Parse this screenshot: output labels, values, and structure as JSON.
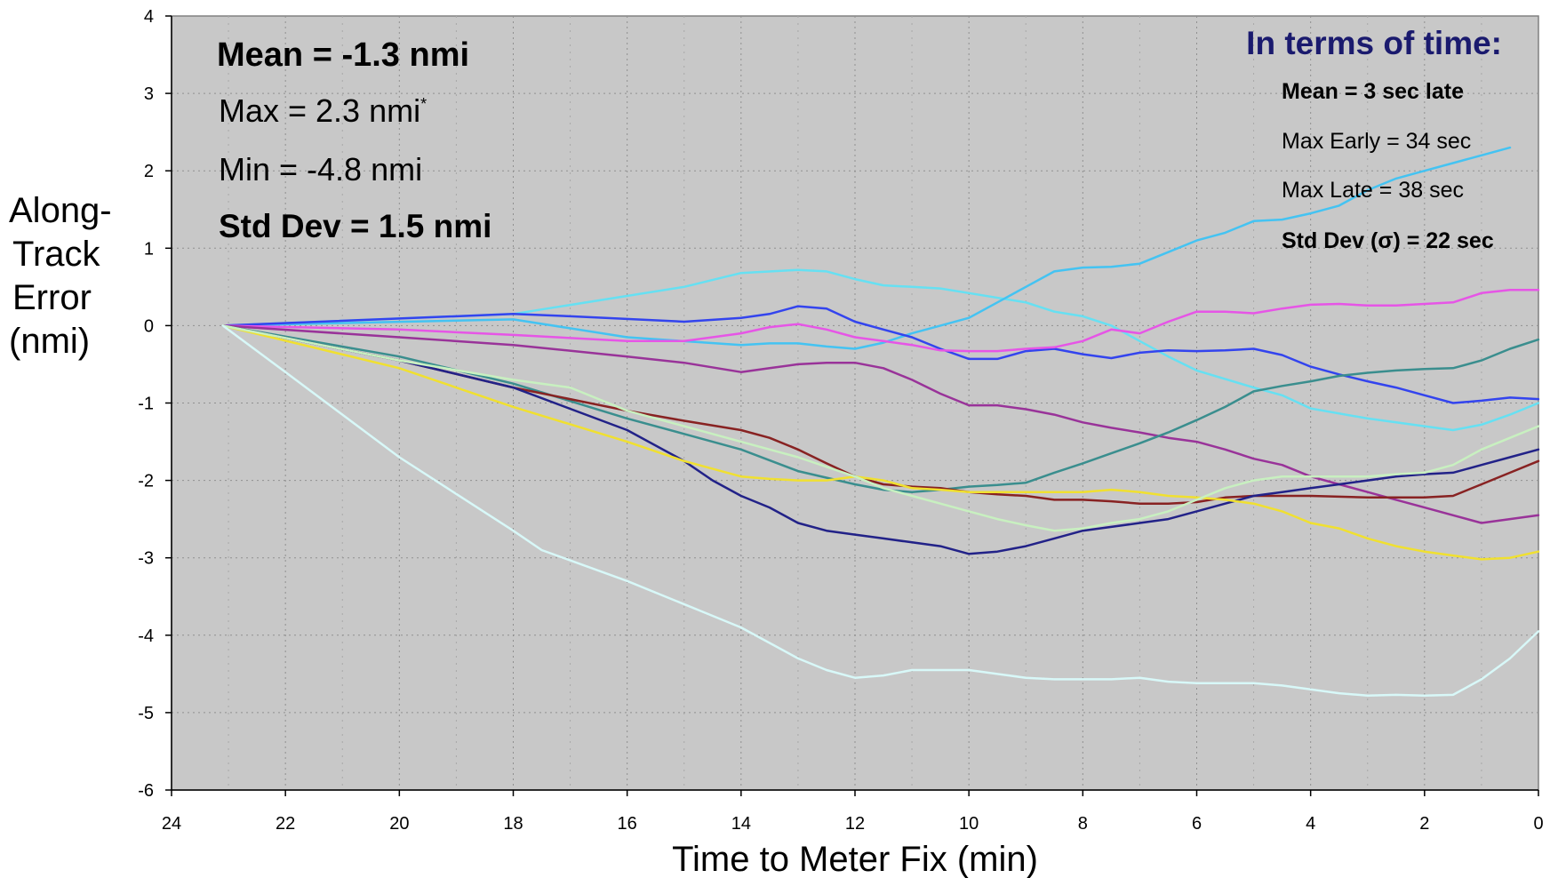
{
  "chart_data": {
    "type": "line",
    "xlabel": "Time to Meter Fix (min)",
    "ylabel": "Along- Track Error (nmi)",
    "xlim": [
      24,
      0
    ],
    "ylim": [
      -6,
      4
    ],
    "x_ticks": [
      24,
      22,
      20,
      18,
      16,
      14,
      12,
      10,
      8,
      6,
      4,
      2,
      0
    ],
    "y_ticks": [
      4,
      3,
      2,
      1,
      0,
      -1,
      -2,
      -3,
      -4,
      -5,
      -6
    ],
    "grid": "dotted",
    "plot_background": "#c8c8c8",
    "stats_left": [
      {
        "text": "Mean = -1.3 nmi",
        "bold": true
      },
      {
        "text": "Max  = 2.3 nmi",
        "sup": "*"
      },
      {
        "text": "Min = -4.8 nmi"
      },
      {
        "text": "Std Dev = 1.5 nmi",
        "bold": true
      }
    ],
    "time_box": {
      "title": "In terms of time:",
      "title_color": "#1a1a6e",
      "lines": [
        {
          "text": "Mean = 3 sec late",
          "bold": true
        },
        {
          "text": "Max Early = 34 sec"
        },
        {
          "text": "Max Late = 38 sec"
        },
        {
          "text": "Std Dev (σ) = 22 sec",
          "bold": true
        }
      ]
    },
    "series": [
      {
        "color": "#66e0f2",
        "x": [
          23.1,
          18,
          15,
          14,
          13,
          12.5,
          12,
          11.5,
          11,
          10.5,
          10,
          9,
          8.5,
          8,
          7.5,
          7,
          6.5,
          6,
          5,
          4.5,
          4,
          3,
          2,
          1.5,
          1,
          0.5,
          0
        ],
        "y": [
          0,
          0.15,
          0.5,
          0.68,
          0.72,
          0.7,
          0.6,
          0.52,
          0.5,
          0.48,
          0.42,
          0.3,
          0.18,
          0.12,
          0.0,
          -0.2,
          -0.4,
          -0.58,
          -0.8,
          -0.9,
          -1.07,
          -1.2,
          -1.3,
          -1.35,
          -1.28,
          -1.15,
          -1.0
        ]
      },
      {
        "color": "#44c3f2",
        "x": [
          23.1,
          18,
          16,
          14,
          13.5,
          13,
          12.5,
          12,
          11.5,
          11,
          10.5,
          10,
          9.5,
          9,
          8.5,
          8,
          7.5,
          7,
          6.5,
          6,
          5.5,
          5,
          4.5,
          4,
          3.5,
          3,
          2.5,
          2,
          1.5,
          1,
          0.5
        ],
        "y": [
          0,
          0.08,
          -0.15,
          -0.25,
          -0.23,
          -0.23,
          -0.27,
          -0.3,
          -0.22,
          -0.1,
          0.0,
          0.1,
          0.3,
          0.5,
          0.7,
          0.75,
          0.76,
          0.8,
          0.95,
          1.1,
          1.2,
          1.35,
          1.37,
          1.45,
          1.55,
          1.75,
          1.9,
          2.0,
          2.1,
          2.2,
          2.3
        ]
      },
      {
        "color": "#3344ee",
        "x": [
          23.1,
          18,
          17,
          15,
          14,
          13.5,
          13,
          12.5,
          12,
          11.5,
          11,
          10.5,
          10,
          9.5,
          9,
          8.5,
          8,
          7.5,
          7,
          6.5,
          6,
          5.5,
          5,
          4.5,
          4,
          3.5,
          3,
          2.5,
          2,
          1.5,
          1,
          0.5,
          0
        ],
        "y": [
          0,
          0.15,
          0.12,
          0.05,
          0.1,
          0.15,
          0.25,
          0.22,
          0.05,
          -0.05,
          -0.15,
          -0.3,
          -0.43,
          -0.43,
          -0.33,
          -0.3,
          -0.37,
          -0.42,
          -0.35,
          -0.32,
          -0.33,
          -0.32,
          -0.3,
          -0.38,
          -0.53,
          -0.63,
          -0.72,
          -0.8,
          -0.9,
          -1.0,
          -0.97,
          -0.93,
          -0.95
        ]
      },
      {
        "color": "#e655e6",
        "x": [
          23.1,
          20,
          18,
          16,
          15,
          14,
          13.5,
          13,
          12.5,
          12,
          11.5,
          11,
          10.5,
          10,
          9.5,
          9,
          8.5,
          8,
          7.5,
          7,
          6.5,
          6,
          5.5,
          5,
          4.5,
          4,
          3.5,
          3,
          2.5,
          2,
          1.5,
          1,
          0.5,
          0
        ],
        "y": [
          0,
          -0.05,
          -0.12,
          -0.2,
          -0.2,
          -0.1,
          -0.02,
          0.02,
          -0.05,
          -0.15,
          -0.2,
          -0.25,
          -0.32,
          -0.33,
          -0.33,
          -0.3,
          -0.28,
          -0.2,
          -0.05,
          -0.1,
          0.05,
          0.18,
          0.18,
          0.16,
          0.22,
          0.27,
          0.28,
          0.26,
          0.26,
          0.28,
          0.3,
          0.42,
          0.46,
          0.46
        ]
      },
      {
        "color": "#993399",
        "x": [
          23.1,
          20,
          18,
          16,
          15,
          14,
          13.5,
          13,
          12.5,
          12,
          11.5,
          11,
          10.5,
          10,
          9.5,
          9,
          8.5,
          8,
          7.5,
          7,
          6.5,
          6,
          5.5,
          5,
          4.5,
          4,
          3.5,
          3,
          2.5,
          2,
          1.5,
          1,
          0.5,
          0
        ],
        "y": [
          0,
          -0.15,
          -0.25,
          -0.4,
          -0.48,
          -0.6,
          -0.55,
          -0.5,
          -0.48,
          -0.48,
          -0.55,
          -0.7,
          -0.88,
          -1.03,
          -1.03,
          -1.08,
          -1.15,
          -1.25,
          -1.32,
          -1.38,
          -1.45,
          -1.5,
          -1.6,
          -1.72,
          -1.8,
          -1.95,
          -2.05,
          -2.15,
          -2.25,
          -2.35,
          -2.45,
          -2.55,
          -2.5,
          -2.45
        ]
      },
      {
        "color": "#3a8e8e",
        "x": [
          23.1,
          20,
          18,
          16,
          15,
          14,
          13,
          12,
          11.5,
          11,
          10.5,
          10,
          9.5,
          9,
          8.5,
          8,
          7.5,
          7,
          6.5,
          6,
          5.5,
          5,
          4.5,
          4,
          3.5,
          3,
          2.5,
          2,
          1.5,
          1,
          0.5,
          0
        ],
        "y": [
          0,
          -0.4,
          -0.75,
          -1.2,
          -1.4,
          -1.6,
          -1.88,
          -2.05,
          -2.12,
          -2.15,
          -2.12,
          -2.08,
          -2.06,
          -2.03,
          -1.9,
          -1.78,
          -1.65,
          -1.52,
          -1.38,
          -1.22,
          -1.05,
          -0.85,
          -0.78,
          -0.72,
          -0.65,
          -0.61,
          -0.58,
          -0.56,
          -0.55,
          -0.45,
          -0.3,
          -0.18
        ]
      },
      {
        "color": "#882222",
        "x": [
          23.1,
          20,
          18,
          16,
          15,
          14,
          13.5,
          13,
          12.5,
          12,
          11.5,
          11,
          10.5,
          10,
          9.5,
          9,
          8.5,
          8,
          7.5,
          7,
          6.5,
          6,
          5.5,
          5,
          4.5,
          4,
          3.5,
          3,
          2.5,
          2,
          1.5,
          1,
          0.5,
          0
        ],
        "y": [
          0,
          -0.45,
          -0.8,
          -1.1,
          -1.23,
          -1.35,
          -1.45,
          -1.6,
          -1.78,
          -1.95,
          -2.05,
          -2.08,
          -2.1,
          -2.15,
          -2.18,
          -2.2,
          -2.25,
          -2.25,
          -2.27,
          -2.3,
          -2.3,
          -2.28,
          -2.22,
          -2.2,
          -2.2,
          -2.2,
          -2.21,
          -2.22,
          -2.22,
          -2.22,
          -2.2,
          -2.05,
          -1.9,
          -1.75
        ]
      },
      {
        "color": "#222288",
        "x": [
          23.1,
          20,
          18,
          16,
          15,
          14.5,
          14,
          13.5,
          13,
          12.5,
          12,
          11.5,
          11,
          10.5,
          10,
          9.5,
          9,
          8.5,
          8,
          7.5,
          7,
          6.5,
          6,
          5.5,
          5,
          4.5,
          4,
          3.5,
          3,
          2.5,
          2,
          1.5,
          1,
          0.5,
          0
        ],
        "y": [
          0,
          -0.45,
          -0.8,
          -1.35,
          -1.75,
          -2.0,
          -2.2,
          -2.35,
          -2.55,
          -2.65,
          -2.7,
          -2.75,
          -2.8,
          -2.85,
          -2.95,
          -2.92,
          -2.85,
          -2.75,
          -2.65,
          -2.6,
          -2.55,
          -2.5,
          -2.4,
          -2.3,
          -2.2,
          -2.15,
          -2.1,
          -2.05,
          -2.0,
          -1.95,
          -1.92,
          -1.9,
          -1.8,
          -1.7,
          -1.6
        ]
      },
      {
        "color": "#f0e030",
        "x": [
          23.1,
          20,
          18,
          16,
          15,
          14,
          13.5,
          13,
          12.5,
          12,
          11.5,
          11,
          10.5,
          10,
          9.5,
          9,
          8.5,
          8,
          7.5,
          7,
          6.5,
          6,
          5.5,
          5,
          4.5,
          4,
          3.5,
          3,
          2.5,
          2,
          1.5,
          1,
          0.5,
          0
        ],
        "y": [
          0,
          -0.55,
          -1.05,
          -1.5,
          -1.75,
          -1.95,
          -1.98,
          -2.0,
          -2.0,
          -1.95,
          -2.0,
          -2.1,
          -2.12,
          -2.15,
          -2.15,
          -2.15,
          -2.15,
          -2.15,
          -2.12,
          -2.15,
          -2.2,
          -2.22,
          -2.25,
          -2.3,
          -2.4,
          -2.55,
          -2.62,
          -2.75,
          -2.85,
          -2.92,
          -2.97,
          -3.02,
          -3.0,
          -2.92
        ]
      },
      {
        "color": "#c8f0c0",
        "x": [
          23.1,
          20,
          18,
          17.5,
          17,
          16,
          15,
          14,
          13,
          12,
          11.5,
          11,
          10.5,
          10,
          9.5,
          9,
          8.5,
          8,
          7.5,
          7,
          6.5,
          6,
          5.5,
          5,
          4.5,
          4,
          3.5,
          3,
          2.5,
          2,
          1.5,
          1,
          0.5,
          0
        ],
        "y": [
          0,
          -0.45,
          -0.7,
          -0.75,
          -0.8,
          -1.1,
          -1.3,
          -1.5,
          -1.7,
          -1.95,
          -2.1,
          -2.2,
          -2.3,
          -2.4,
          -2.5,
          -2.58,
          -2.65,
          -2.62,
          -2.55,
          -2.5,
          -2.4,
          -2.25,
          -2.1,
          -2.0,
          -1.95,
          -1.95,
          -1.95,
          -1.95,
          -1.92,
          -1.9,
          -1.8,
          -1.6,
          -1.45,
          -1.3
        ]
      },
      {
        "color": "#d8f8f8",
        "x": [
          23.1,
          22,
          20,
          18,
          17.5,
          16,
          14.5,
          14,
          13.5,
          13,
          12.5,
          12,
          11.5,
          11,
          10.5,
          10,
          9.5,
          9,
          8.5,
          8,
          7.5,
          7,
          6.5,
          6,
          5.5,
          5,
          4.5,
          4,
          3.5,
          3,
          2.5,
          2,
          1.5,
          1,
          0.5,
          0
        ],
        "y": [
          0,
          -0.6,
          -1.7,
          -2.65,
          -2.9,
          -3.3,
          -3.75,
          -3.9,
          -4.1,
          -4.3,
          -4.45,
          -4.55,
          -4.52,
          -4.45,
          -4.45,
          -4.45,
          -4.5,
          -4.55,
          -4.57,
          -4.57,
          -4.57,
          -4.55,
          -4.6,
          -4.62,
          -4.62,
          -4.62,
          -4.65,
          -4.7,
          -4.75,
          -4.78,
          -4.77,
          -4.78,
          -4.77,
          -4.57,
          -4.3,
          -3.95
        ]
      }
    ]
  }
}
